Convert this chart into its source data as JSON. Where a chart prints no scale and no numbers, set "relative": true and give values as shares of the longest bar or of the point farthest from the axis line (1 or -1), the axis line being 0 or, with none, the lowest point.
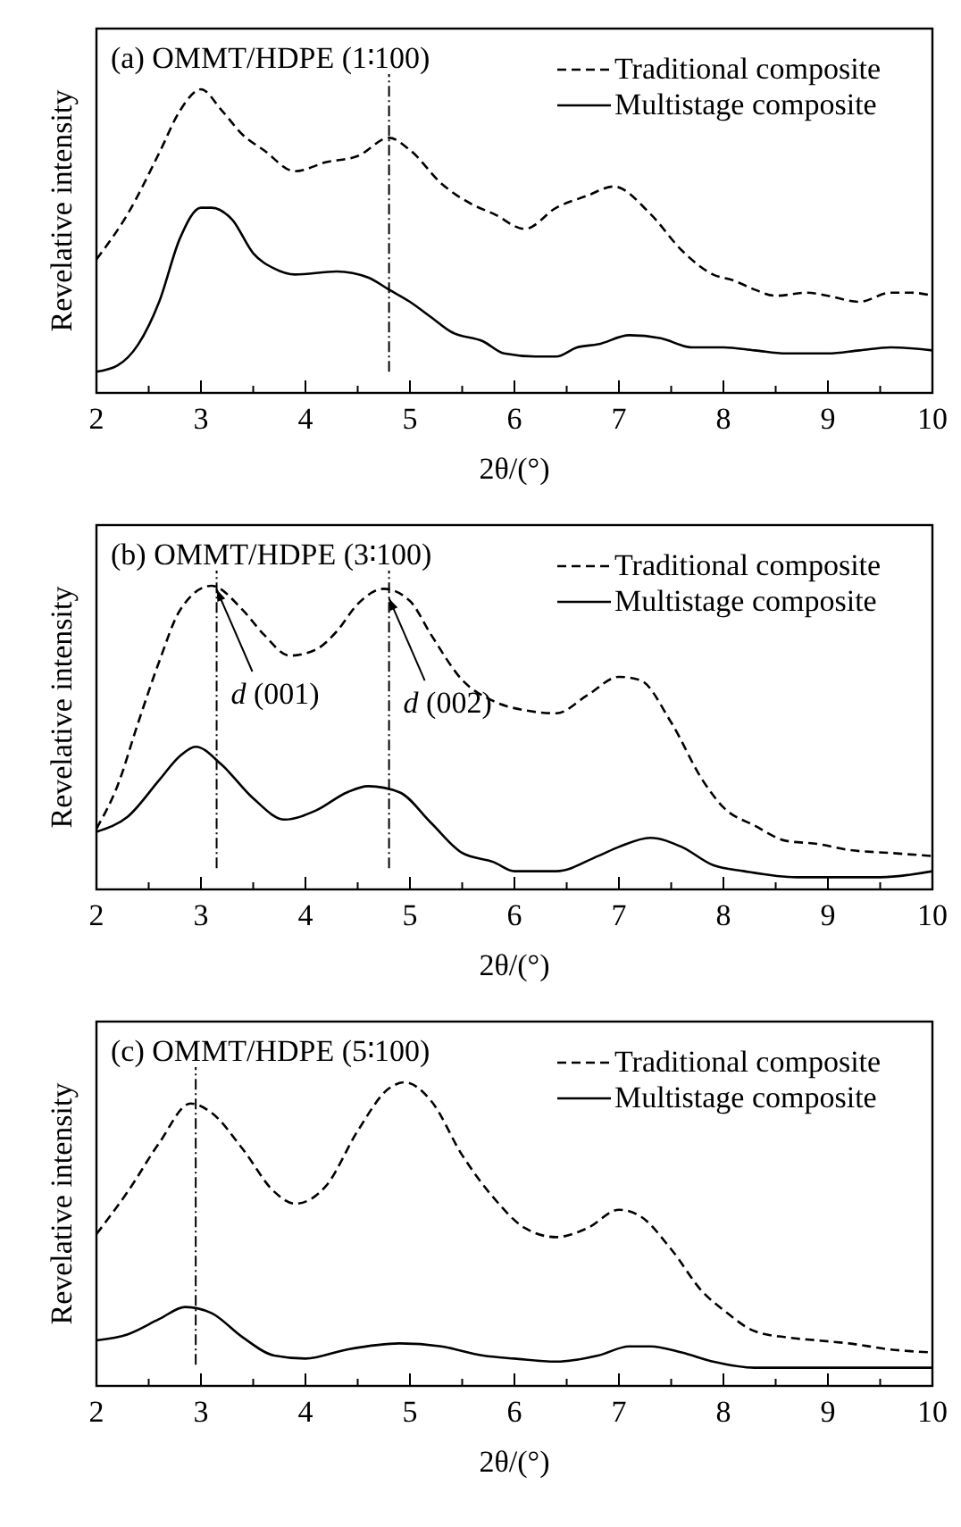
{
  "chart_data": [
    {
      "type": "line",
      "title": "(a) OMMT/HDPE (1∶100)",
      "xlabel": "2θ/(°)",
      "ylabel": "Revelative intensity",
      "relative": true,
      "legend": "top right",
      "xlim": [
        2,
        10
      ],
      "xticks": [
        2,
        {
          "value": 2.5,
          "label": null
        },
        3,
        {
          "value": 3.5,
          "label": null
        },
        4,
        {
          "value": 4.5,
          "label": null
        },
        5,
        {
          "value": 5.5,
          "label": null
        },
        6,
        {
          "value": 6.5,
          "label": null
        },
        7,
        {
          "value": 7.5,
          "label": null
        },
        8,
        {
          "value": 8.5,
          "label": null
        },
        9,
        {
          "value": 9.5,
          "label": null
        },
        10
      ],
      "ref_lines": [
        {
          "axis": "x",
          "value": 4.8
        }
      ],
      "series": [
        {
          "name": "Traditional composite",
          "color": "#000000",
          "line_style": "dashed",
          "x": [
            2.0,
            2.3,
            2.6,
            2.8,
            3.0,
            3.2,
            3.4,
            3.6,
            3.9,
            4.2,
            4.5,
            4.8,
            5.0,
            5.3,
            5.6,
            5.8,
            6.1,
            6.4,
            6.7,
            6.95,
            7.3,
            7.6,
            7.9,
            8.1,
            8.3,
            8.5,
            8.8,
            9.0,
            9.3,
            9.6,
            9.8,
            10
          ],
          "values": [
            0.44,
            0.59,
            0.79,
            0.93,
            1.0,
            0.93,
            0.85,
            0.8,
            0.73,
            0.76,
            0.78,
            0.84,
            0.8,
            0.69,
            0.62,
            0.59,
            0.54,
            0.61,
            0.65,
            0.68,
            0.59,
            0.47,
            0.39,
            0.37,
            0.34,
            0.32,
            0.33,
            0.32,
            0.3,
            0.33,
            0.33,
            0.32
          ]
        },
        {
          "name": "Multistage composite",
          "color": "#000000",
          "line_style": "solid",
          "x": [
            2.0,
            2.2,
            2.4,
            2.6,
            2.8,
            3.0,
            3.1,
            3.3,
            3.5,
            3.7,
            3.9,
            4.3,
            4.6,
            4.8,
            5.0,
            5.2,
            5.4,
            5.7,
            5.9,
            6.2,
            6.4,
            6.6,
            6.8,
            7.1,
            7.4,
            7.7,
            8.0,
            8.3,
            8.6,
            9.0,
            9.3,
            9.6,
            10
          ],
          "values": [
            0.07,
            0.09,
            0.16,
            0.3,
            0.51,
            0.61,
            0.61,
            0.57,
            0.46,
            0.41,
            0.39,
            0.4,
            0.38,
            0.34,
            0.3,
            0.25,
            0.2,
            0.17,
            0.13,
            0.12,
            0.12,
            0.15,
            0.16,
            0.19,
            0.18,
            0.15,
            0.15,
            0.14,
            0.13,
            0.13,
            0.14,
            0.15,
            0.14
          ]
        }
      ]
    },
    {
      "type": "line",
      "title": "(b) OMMT/HDPE (3∶100)",
      "xlabel": "2θ/(°)",
      "ylabel": "Revelative intensity",
      "relative": true,
      "legend": "top right",
      "xlim": [
        2,
        10
      ],
      "xticks": [
        2,
        {
          "value": 2.5,
          "label": null
        },
        3,
        {
          "value": 3.5,
          "label": null
        },
        4,
        {
          "value": 4.5,
          "label": null
        },
        5,
        {
          "value": 5.5,
          "label": null
        },
        6,
        {
          "value": 6.5,
          "label": null
        },
        7,
        {
          "value": 7.5,
          "label": null
        },
        8,
        {
          "value": 8.5,
          "label": null
        },
        9,
        {
          "value": 9.5,
          "label": null
        },
        10
      ],
      "ref_lines": [
        {
          "axis": "x",
          "value": 3.15
        },
        {
          "axis": "x",
          "value": 4.8
        }
      ],
      "annotations": [
        {
          "text": "d (001)",
          "x": 3.15,
          "y": 1.0
        },
        {
          "text": "d (002)",
          "x": 4.8,
          "y": 0.97
        }
      ],
      "series": [
        {
          "name": "Traditional composite",
          "color": "#000000",
          "line_style": "dashed",
          "x": [
            2.0,
            2.2,
            2.4,
            2.6,
            2.8,
            3.1,
            3.4,
            3.6,
            3.85,
            4.1,
            4.3,
            4.5,
            4.75,
            5.0,
            5.2,
            5.5,
            5.8,
            6.1,
            6.4,
            6.7,
            7.0,
            7.2,
            7.5,
            7.8,
            8.0,
            8.3,
            8.6,
            8.9,
            9.2,
            9.6,
            10
          ],
          "values": [
            0.2,
            0.34,
            0.55,
            0.75,
            0.92,
            1.0,
            0.92,
            0.84,
            0.77,
            0.79,
            0.85,
            0.94,
            0.99,
            0.95,
            0.84,
            0.69,
            0.62,
            0.59,
            0.58,
            0.64,
            0.7,
            0.69,
            0.55,
            0.36,
            0.27,
            0.21,
            0.16,
            0.15,
            0.13,
            0.12,
            0.11
          ]
        },
        {
          "name": "Multistage composite",
          "color": "#000000",
          "line_style": "solid",
          "x": [
            2.0,
            2.3,
            2.6,
            2.8,
            2.95,
            3.2,
            3.5,
            3.8,
            4.1,
            4.4,
            4.6,
            4.9,
            5.2,
            5.5,
            5.8,
            6.0,
            6.4,
            6.8,
            7.0,
            7.3,
            7.6,
            7.9,
            8.2,
            8.7,
            9.0,
            9.5,
            10
          ],
          "values": [
            0.19,
            0.24,
            0.36,
            0.44,
            0.47,
            0.41,
            0.3,
            0.23,
            0.26,
            0.32,
            0.34,
            0.32,
            0.22,
            0.12,
            0.09,
            0.06,
            0.06,
            0.11,
            0.14,
            0.17,
            0.14,
            0.08,
            0.06,
            0.04,
            0.04,
            0.04,
            0.06
          ]
        }
      ]
    },
    {
      "type": "line",
      "title": "(c) OMMT/HDPE (5∶100)",
      "xlabel": "2θ/(°)",
      "ylabel": "Revelative intensity",
      "relative": true,
      "legend": "top right",
      "xlim": [
        2,
        10
      ],
      "xticks": [
        2,
        {
          "value": 2.5,
          "label": null
        },
        3,
        {
          "value": 3.5,
          "label": null
        },
        4,
        {
          "value": 4.5,
          "label": null
        },
        5,
        {
          "value": 5.5,
          "label": null
        },
        6,
        {
          "value": 6.5,
          "label": null
        },
        7,
        {
          "value": 7.5,
          "label": null
        },
        8,
        {
          "value": 8.5,
          "label": null
        },
        9,
        {
          "value": 9.5,
          "label": null
        },
        10
      ],
      "ref_lines": [
        {
          "axis": "x",
          "value": 2.95
        }
      ],
      "series": [
        {
          "name": "Traditional composite",
          "color": "#000000",
          "line_style": "dashed",
          "x": [
            2.0,
            2.3,
            2.6,
            2.9,
            3.1,
            3.4,
            3.7,
            3.9,
            4.2,
            4.5,
            4.8,
            4.95,
            5.2,
            5.5,
            5.8,
            6.1,
            6.4,
            6.7,
            7.0,
            7.2,
            7.5,
            7.8,
            8.0,
            8.3,
            8.6,
            8.9,
            9.2,
            9.6,
            10
          ],
          "values": [
            0.5,
            0.64,
            0.8,
            0.93,
            0.9,
            0.78,
            0.64,
            0.6,
            0.66,
            0.84,
            0.98,
            1.0,
            0.94,
            0.76,
            0.62,
            0.52,
            0.49,
            0.52,
            0.58,
            0.56,
            0.45,
            0.31,
            0.25,
            0.18,
            0.16,
            0.15,
            0.14,
            0.12,
            0.11
          ]
        },
        {
          "name": "Multistage composite",
          "color": "#000000",
          "line_style": "solid",
          "x": [
            2.0,
            2.3,
            2.6,
            2.85,
            3.1,
            3.4,
            3.7,
            4.0,
            4.4,
            4.9,
            5.3,
            5.7,
            6.0,
            6.4,
            6.8,
            7.1,
            7.3,
            7.6,
            7.9,
            8.3,
            8.8,
            9.5,
            10
          ],
          "values": [
            0.15,
            0.17,
            0.22,
            0.26,
            0.24,
            0.16,
            0.1,
            0.09,
            0.12,
            0.14,
            0.13,
            0.1,
            0.09,
            0.08,
            0.1,
            0.13,
            0.13,
            0.11,
            0.08,
            0.06,
            0.06,
            0.06,
            0.06
          ]
        }
      ]
    }
  ]
}
